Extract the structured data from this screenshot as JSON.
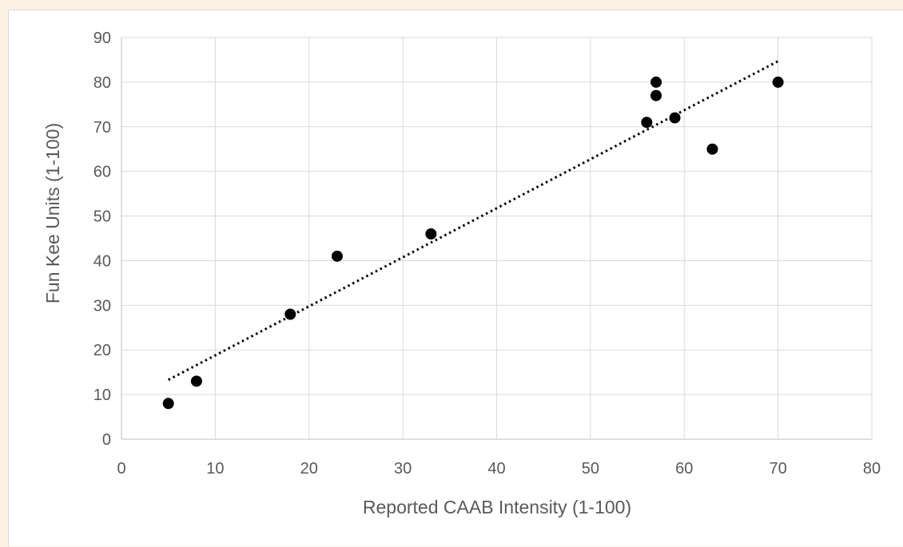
{
  "chart_data": {
    "type": "scatter",
    "title": "",
    "xlabel": "Reported CAAB Intensity (1-100)",
    "ylabel": "Fun Kee Units (1-100)",
    "xlim": [
      0,
      80
    ],
    "ylim": [
      0,
      90
    ],
    "x_ticks": [
      0,
      10,
      20,
      30,
      40,
      50,
      60,
      70,
      80
    ],
    "y_ticks": [
      0,
      10,
      20,
      30,
      40,
      50,
      60,
      70,
      80,
      90
    ],
    "grid": true,
    "legend": "none",
    "series": [
      {
        "points": [
          {
            "x": 5,
            "y": 8
          },
          {
            "x": 8,
            "y": 13
          },
          {
            "x": 18,
            "y": 28
          },
          {
            "x": 23,
            "y": 41
          },
          {
            "x": 33,
            "y": 46
          },
          {
            "x": 56,
            "y": 71
          },
          {
            "x": 57,
            "y": 77
          },
          {
            "x": 57,
            "y": 80
          },
          {
            "x": 59,
            "y": 72
          },
          {
            "x": 63,
            "y": 65
          },
          {
            "x": 70,
            "y": 80
          }
        ],
        "color": "#000000"
      }
    ],
    "trendline": {
      "type": "linear",
      "style": "dotted",
      "color": "#000000",
      "start": {
        "x": 5,
        "y": 13.3
      },
      "end": {
        "x": 70,
        "y": 84.7
      }
    }
  }
}
